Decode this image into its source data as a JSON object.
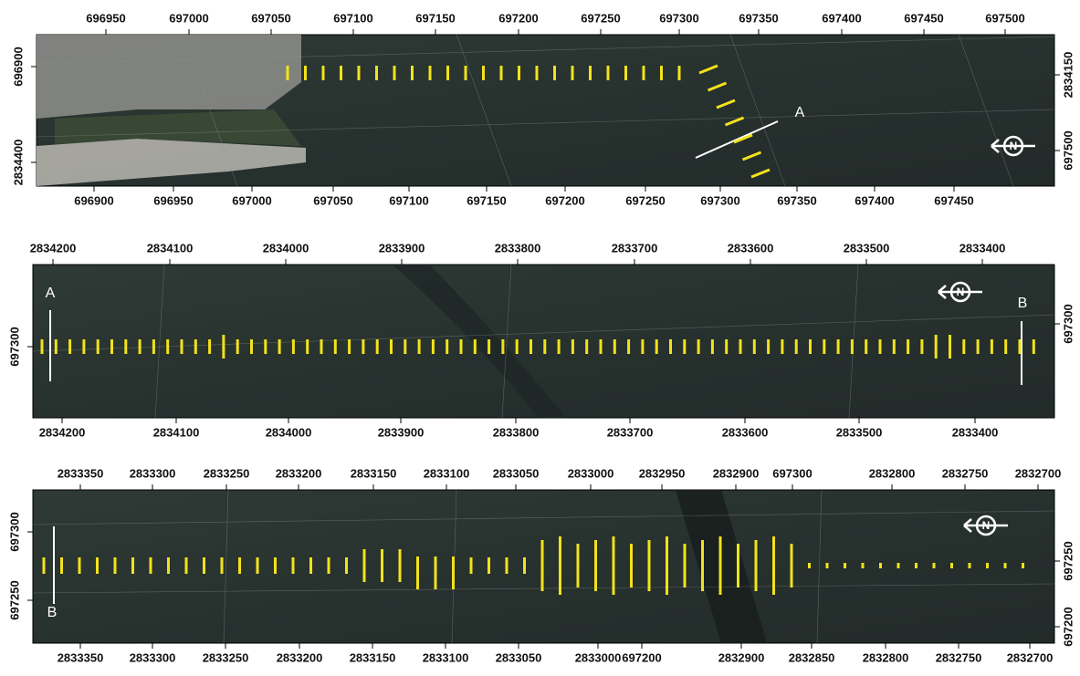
{
  "panels": [
    {
      "top_ticks": [
        "696950",
        "697000",
        "697050",
        "697100",
        "697150",
        "697200",
        "697250",
        "697300",
        "697350",
        "697400",
        "697450",
        "697500"
      ],
      "bottom_ticks": [
        "696900",
        "696950",
        "697000",
        "697050",
        "697100",
        "697150",
        "697200",
        "697250",
        "697300",
        "697350",
        "697400",
        "697450"
      ],
      "left_ticks": [
        "696900",
        "2834400"
      ],
      "right_ticks": [
        "2834150",
        "697500"
      ],
      "labels": [
        "A"
      ],
      "north": "N"
    },
    {
      "top_ticks": [
        "2834200",
        "2834100",
        "2834000",
        "2833900",
        "2833800",
        "2833700",
        "2833600",
        "2833500",
        "2833400"
      ],
      "bottom_ticks": [
        "2834200",
        "2834100",
        "2834000",
        "2833900",
        "2833800",
        "2833700",
        "2833600",
        "2833500",
        "2833400"
      ],
      "left_ticks": [
        "697300"
      ],
      "right_ticks": [
        "697300"
      ],
      "labels": [
        "A",
        "B"
      ],
      "north": "N"
    },
    {
      "top_ticks": [
        "2833350",
        "2833300",
        "2833250",
        "2833200",
        "2833150",
        "2833100",
        "2833050",
        "2833000",
        "2832950",
        "2832900",
        "697300",
        "2832800",
        "2832750",
        "2832700"
      ],
      "bottom_ticks": [
        "2833350",
        "2833300",
        "2833250",
        "2833200",
        "2833150",
        "2833100",
        "2833050",
        "2833000",
        "697200",
        "2832900",
        "2832850",
        "2832800",
        "2832750",
        "2832700"
      ],
      "left_ticks": [
        "697300",
        "697250"
      ],
      "right_ticks": [
        "697250",
        "697200"
      ],
      "labels": [
        "B"
      ],
      "north": "N"
    }
  ]
}
